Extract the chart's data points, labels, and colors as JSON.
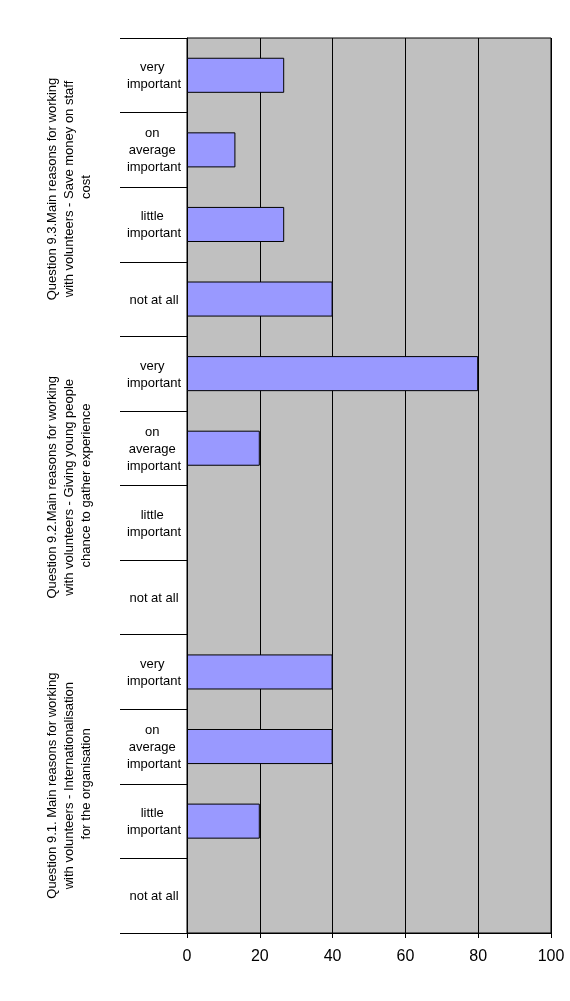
{
  "chart_data": {
    "type": "bar",
    "orientation": "horizontal",
    "categories": [
      "very important",
      "on average important",
      "little important",
      "not at all",
      "very important",
      "on average important",
      "little important",
      "not at all",
      "very important",
      "on average important",
      "little important",
      "not at all"
    ],
    "values": [
      26.7,
      13.3,
      26.7,
      40,
      80,
      20,
      0,
      0,
      40,
      40,
      20,
      0
    ],
    "color": "#9999ff",
    "xlim": [
      0,
      100
    ],
    "xticks": [
      0,
      20,
      40,
      60,
      80,
      100
    ],
    "grid": "x",
    "annotations": [
      "Question 9.3.Main reasons for working with volunteers - Save money on staff cost",
      "Question 9.2.Main reasons for working with volunteers - Giving young people chance to gather experience",
      "Question 9.1. Main reasons for working with volunteers - Internationalisation for the organisation"
    ]
  }
}
